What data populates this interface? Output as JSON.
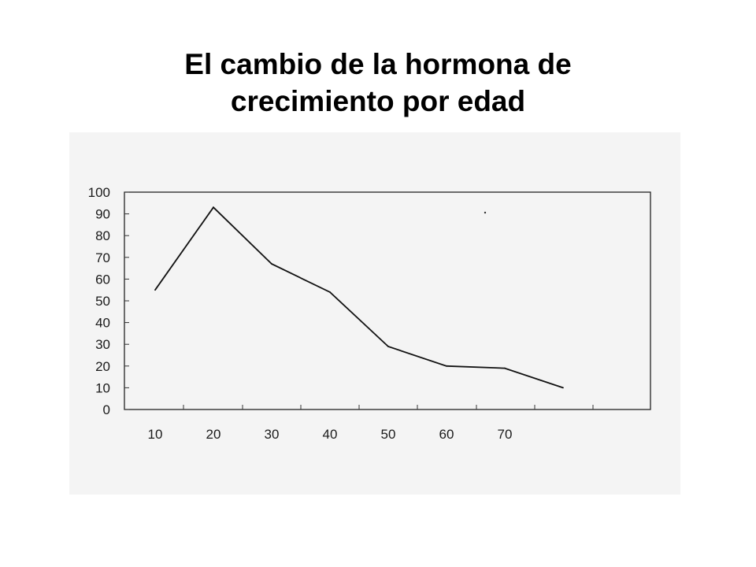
{
  "title_line1": "El cambio de la hormona de",
  "title_line2": "crecimiento por edad",
  "colors": {
    "background": "#ffffff",
    "scan_background": "#f4f4f4",
    "line": "#111111",
    "text": "#000000"
  },
  "chart_data": {
    "type": "line",
    "title": "El cambio de la hormona de crecimiento por edad",
    "xlabel": "",
    "ylabel": "",
    "x_tick_labels": [
      "10",
      "20",
      "30",
      "40",
      "50",
      "60",
      "70"
    ],
    "y_tick_labels": [
      "0",
      "10",
      "20",
      "30",
      "40",
      "50",
      "60",
      "70",
      "80",
      "90",
      "100"
    ],
    "ylim": [
      0,
      100
    ],
    "grid": false,
    "legend": "none",
    "series": [
      {
        "x": [
          10,
          20,
          30,
          40,
          50,
          60,
          70,
          80
        ],
        "values": [
          55,
          93,
          67,
          54,
          29,
          20,
          19,
          10
        ]
      }
    ]
  }
}
